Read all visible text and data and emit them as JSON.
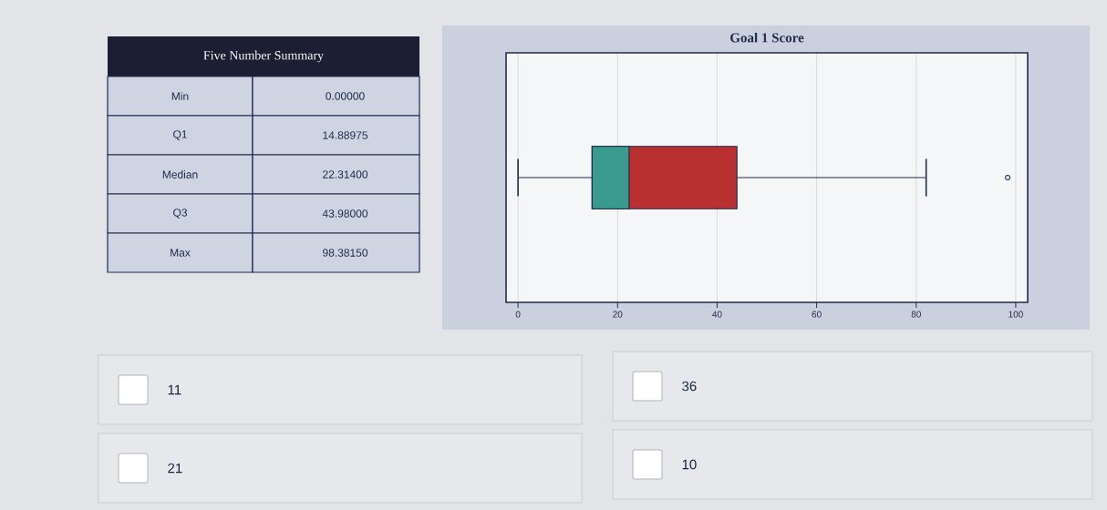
{
  "chart_data": [
    {
      "type": "other",
      "title": "Five Number Summary",
      "annotations": [
        "Min",
        "0.00000",
        "Q1",
        "14.88975",
        "Median",
        "22.31400",
        "Q3",
        "43.98000",
        "Max",
        "98.38150"
      ]
    },
    {
      "type": "box",
      "title": "Goal 1 Score",
      "orientation": "horizontal",
      "categories": [
        null
      ],
      "boxes": [
        {
          "low": 0,
          "q1": 14.88975,
          "median": 22.314,
          "q3": 43.98,
          "high": 82,
          "outliers": [
            98.3815
          ]
        }
      ],
      "color": "#b83030",
      "xlim": [
        -2.4,
        102.4
      ],
      "xticks": [
        0,
        20,
        40,
        60,
        80,
        100
      ],
      "grid": "x"
    },
    {
      "type": "other",
      "annotations": [
        "11",
        "36",
        "21",
        "10"
      ]
    }
  ]
}
